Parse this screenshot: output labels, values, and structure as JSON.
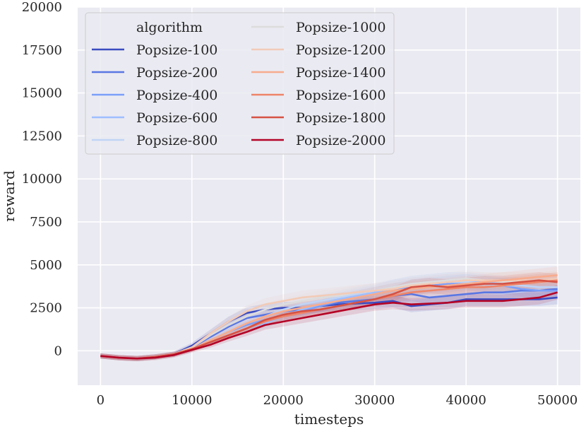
{
  "chart_data": {
    "type": "line",
    "title": "",
    "xlabel": "timesteps",
    "ylabel": "reward",
    "xlim": [
      -2500,
      52500
    ],
    "ylim": [
      -2000,
      20000
    ],
    "xticks": [
      0,
      10000,
      20000,
      30000,
      40000,
      50000
    ],
    "yticks": [
      0,
      2500,
      5000,
      7500,
      10000,
      12500,
      15000,
      17500,
      20000
    ],
    "grid": true,
    "legend": {
      "title": "algorithm",
      "placement": "top-left",
      "columns": 2
    },
    "x": [
      0,
      2000,
      4000,
      6000,
      8000,
      10000,
      12000,
      14000,
      16000,
      18000,
      20000,
      22000,
      24000,
      26000,
      28000,
      30000,
      32000,
      34000,
      36000,
      38000,
      40000,
      42000,
      44000,
      46000,
      48000,
      50000
    ],
    "series": [
      {
        "name": "Popsize-100",
        "color": "#3b4cc0",
        "values": [
          -300,
          -400,
          -450,
          -350,
          -200,
          300,
          1000,
          1700,
          2200,
          2400,
          2500,
          2500,
          2600,
          2700,
          2750,
          2800,
          2900,
          2600,
          2700,
          2800,
          3000,
          3000,
          3000,
          3000,
          3000,
          3100
        ]
      },
      {
        "name": "Popsize-200",
        "color": "#5977e3",
        "values": [
          -300,
          -400,
          -450,
          -350,
          -200,
          200,
          800,
          1400,
          1900,
          2100,
          2300,
          2400,
          2600,
          2800,
          2900,
          3000,
          3200,
          3300,
          3100,
          3200,
          3300,
          3400,
          3400,
          3500,
          3500,
          3600
        ]
      },
      {
        "name": "Popsize-400",
        "color": "#7b9ff9",
        "values": [
          -300,
          -400,
          -450,
          -350,
          -200,
          100,
          600,
          1100,
          1500,
          1800,
          2000,
          2300,
          2600,
          2900,
          3100,
          3300,
          3500,
          3700,
          3800,
          3900,
          4000,
          3900,
          3800,
          3600,
          3500,
          3500
        ]
      },
      {
        "name": "Popsize-600",
        "color": "#9ebeff",
        "values": [
          -300,
          -400,
          -450,
          -350,
          -200,
          100,
          500,
          900,
          1300,
          1600,
          2000,
          2400,
          2700,
          3000,
          3200,
          3400,
          3700,
          3900,
          4000,
          4100,
          4100,
          4000,
          3900,
          3800,
          3700,
          3700
        ]
      },
      {
        "name": "Popsize-800",
        "color": "#c0d4f5",
        "values": [
          -300,
          -400,
          -450,
          -350,
          -200,
          100,
          600,
          1100,
          1600,
          2000,
          2400,
          2700,
          2900,
          3100,
          3300,
          3500,
          3700,
          3800,
          3900,
          4000,
          4000,
          3900,
          3800,
          3800,
          3700,
          3700
        ]
      },
      {
        "name": "Popsize-1000",
        "color": "#dddcdc",
        "values": [
          -300,
          -400,
          -450,
          -350,
          -200,
          200,
          900,
          1500,
          2000,
          2400,
          2700,
          2900,
          3100,
          3200,
          3400,
          3500,
          3700,
          3900,
          4000,
          4100,
          4200,
          4100,
          4000,
          4000,
          4000,
          4100
        ]
      },
      {
        "name": "Popsize-1200",
        "color": "#f2cbb7",
        "values": [
          -300,
          -400,
          -450,
          -350,
          -200,
          200,
          1000,
          1700,
          2300,
          2700,
          2900,
          3100,
          3200,
          3300,
          3400,
          3500,
          3600,
          3800,
          3900,
          4000,
          4100,
          4100,
          4100,
          4100,
          4100,
          4200
        ]
      },
      {
        "name": "Popsize-1400",
        "color": "#f7ac8e",
        "values": [
          -300,
          -400,
          -450,
          -350,
          -200,
          100,
          600,
          1100,
          1600,
          2000,
          2300,
          2500,
          2700,
          2900,
          3100,
          3300,
          3500,
          3600,
          3700,
          3800,
          3900,
          4000,
          4100,
          4200,
          4300,
          4400
        ]
      },
      {
        "name": "Popsize-1600",
        "color": "#ee8468",
        "values": [
          -300,
          -400,
          -450,
          -350,
          -200,
          100,
          500,
          900,
          1300,
          1700,
          2000,
          2200,
          2400,
          2600,
          2800,
          3000,
          3200,
          3400,
          3500,
          3600,
          3700,
          3700,
          3800,
          3900,
          4000,
          4100
        ]
      },
      {
        "name": "Popsize-1800",
        "color": "#d65244",
        "values": [
          -300,
          -400,
          -450,
          -350,
          -200,
          100,
          500,
          900,
          1300,
          1800,
          2100,
          2300,
          2400,
          2600,
          2800,
          3000,
          3300,
          3700,
          3800,
          3700,
          3800,
          3900,
          3900,
          4000,
          4100,
          4000
        ]
      },
      {
        "name": "Popsize-2000",
        "color": "#b40426",
        "values": [
          -300,
          -400,
          -450,
          -400,
          -250,
          50,
          350,
          750,
          1100,
          1500,
          1700,
          1900,
          2100,
          2300,
          2500,
          2700,
          2800,
          2700,
          2750,
          2800,
          2900,
          2900,
          2900,
          3000,
          3100,
          3400
        ]
      }
    ]
  }
}
